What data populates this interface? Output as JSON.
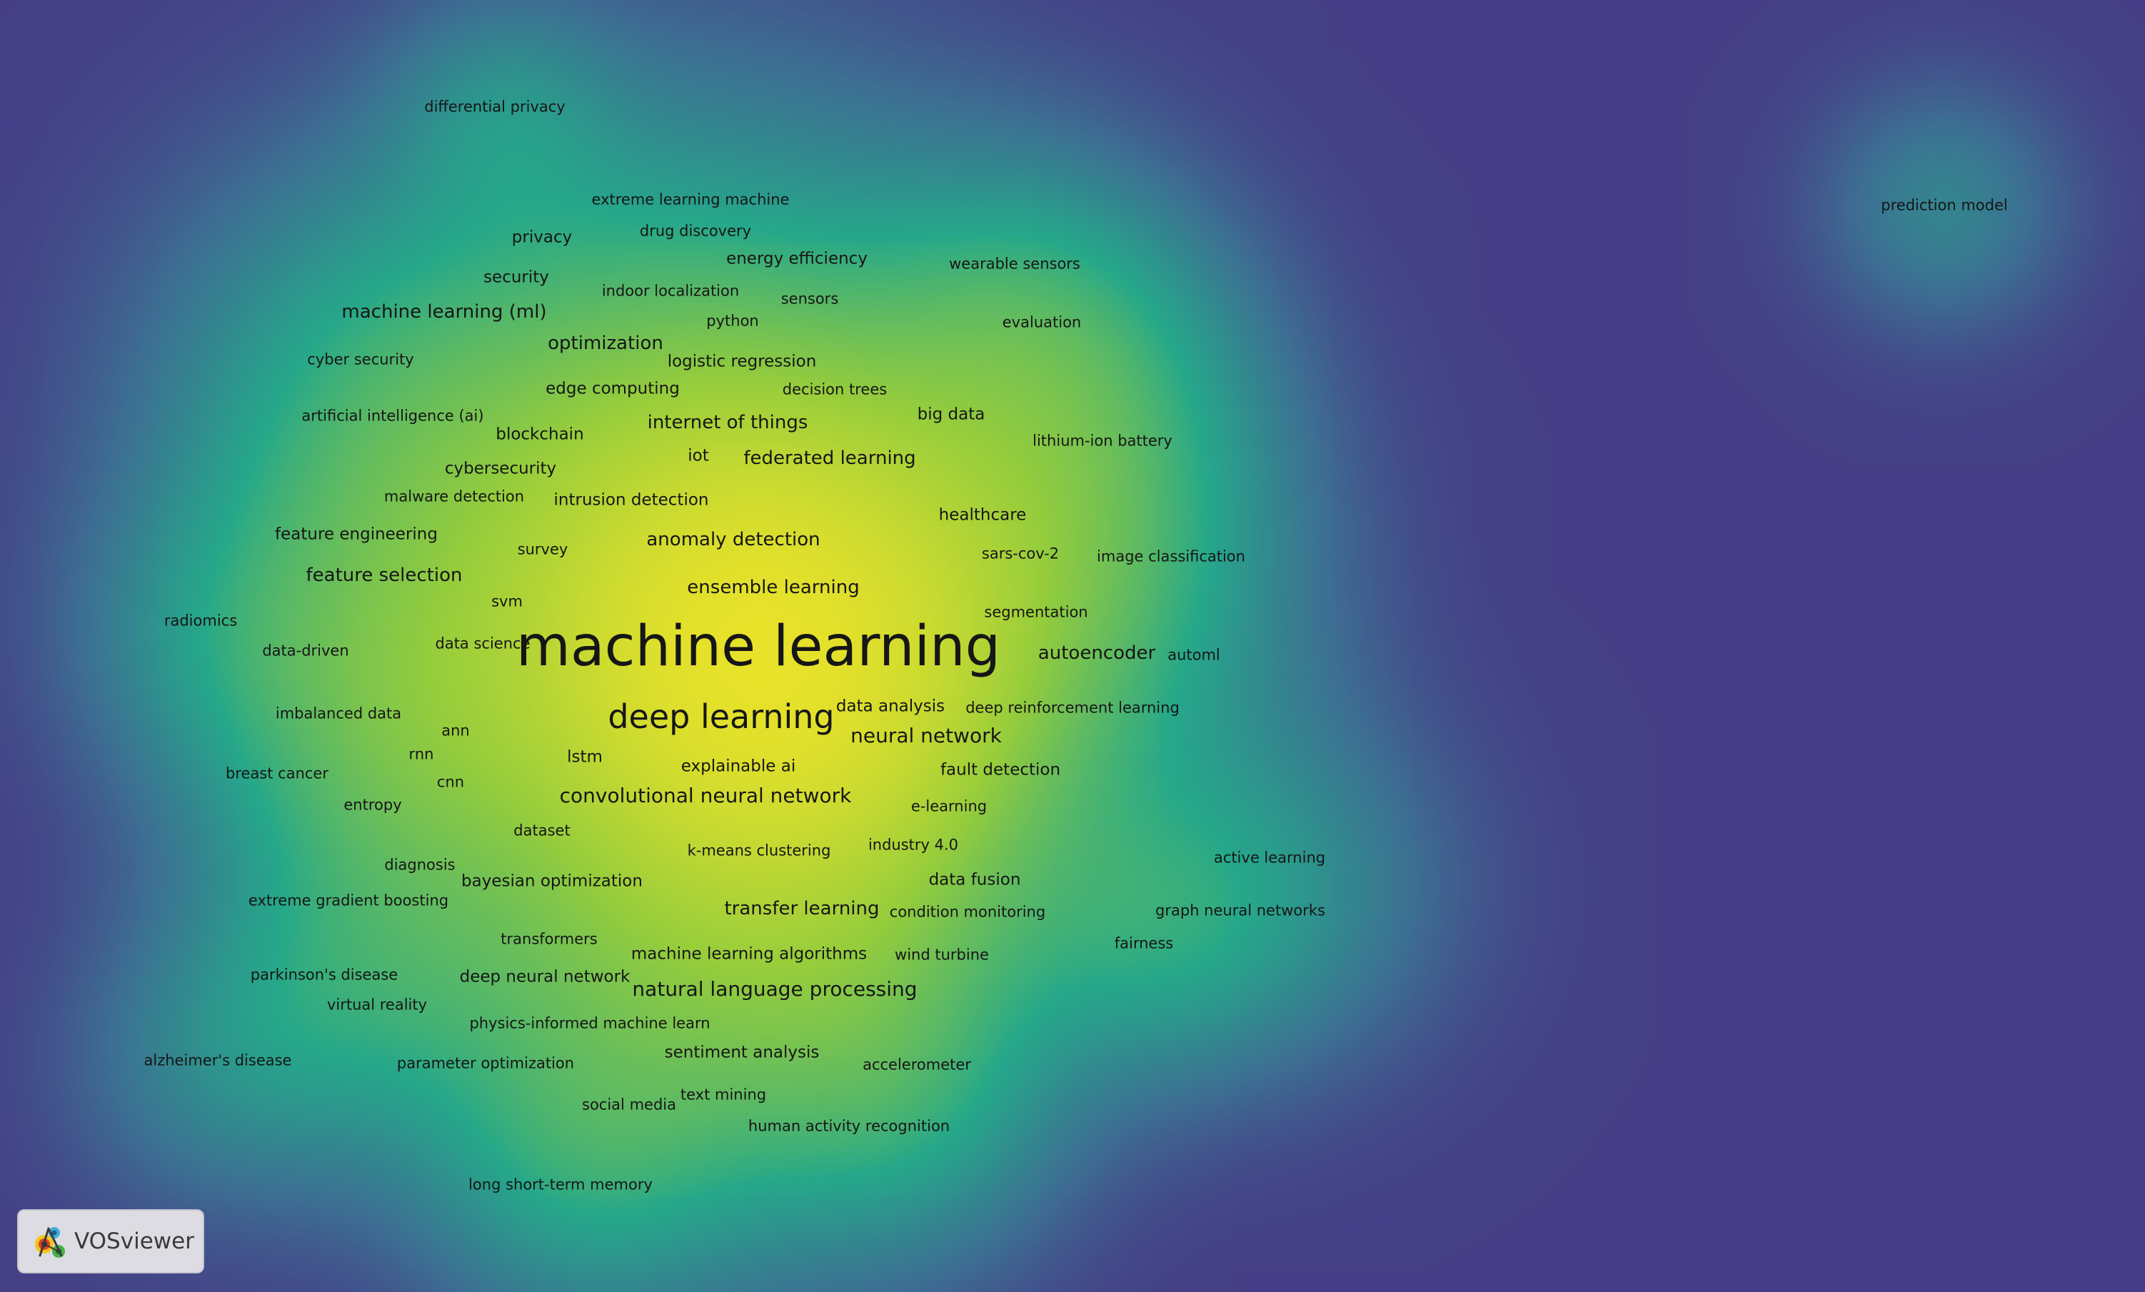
{
  "app": {
    "brand_label": "VOSviewer"
  },
  "colors": {
    "background": "#453e86",
    "density_low": "#3d6f93",
    "density_mid": "#26a88a",
    "density_high": "#fde725",
    "label": "#161616"
  },
  "terms": [
    {
      "label": "machine learning",
      "weight": 100
    },
    {
      "label": "deep learning",
      "weight": 40
    },
    {
      "label": "convolutional neural network",
      "weight": 22
    },
    {
      "label": "neural network",
      "weight": 20
    },
    {
      "label": "natural language processing",
      "weight": 20
    },
    {
      "label": "federated learning",
      "weight": 18
    },
    {
      "label": "internet of things",
      "weight": 18
    },
    {
      "label": "anomaly detection",
      "weight": 17
    },
    {
      "label": "feature selection",
      "weight": 17
    },
    {
      "label": "ensemble learning",
      "weight": 16
    },
    {
      "label": "transfer learning",
      "weight": 16
    },
    {
      "label": "autoencoder",
      "weight": 15
    },
    {
      "label": "optimization",
      "weight": 15
    },
    {
      "label": "machine learning (ml)",
      "weight": 15
    },
    {
      "label": "bayesian optimization",
      "weight": 14
    },
    {
      "label": "iot",
      "weight": 14
    },
    {
      "label": "fault detection",
      "weight": 13
    },
    {
      "label": "data fusion",
      "weight": 12
    },
    {
      "label": "intrusion detection",
      "weight": 13
    },
    {
      "label": "healthcare",
      "weight": 12
    },
    {
      "label": "big data",
      "weight": 12
    },
    {
      "label": "edge computing",
      "weight": 12
    },
    {
      "label": "logistic regression",
      "weight": 12
    },
    {
      "label": "energy efficiency",
      "weight": 12
    },
    {
      "label": "deep neural network",
      "weight": 12
    },
    {
      "label": "sentiment analysis",
      "weight": 12
    },
    {
      "label": "explainable ai",
      "weight": 12
    },
    {
      "label": "data analysis",
      "weight": 12
    },
    {
      "label": "lstm",
      "weight": 12
    },
    {
      "label": "privacy",
      "weight": 12
    },
    {
      "label": "machine learning algorithms",
      "weight": 12
    },
    {
      "label": "feature engineering",
      "weight": 12
    },
    {
      "label": "blockchain",
      "weight": 12
    },
    {
      "label": "cybersecurity",
      "weight": 12
    },
    {
      "label": "security",
      "weight": 12
    },
    {
      "label": "artificial intelligence (ai)",
      "weight": 11
    },
    {
      "label": "svm",
      "weight": 11
    },
    {
      "label": "k-means clustering",
      "weight": 11
    },
    {
      "label": "industry 4.0",
      "weight": 11
    },
    {
      "label": "e-learning",
      "weight": 11
    },
    {
      "label": "condition monitoring",
      "weight": 11
    },
    {
      "label": "wind turbine",
      "weight": 11
    },
    {
      "label": "deep reinforcement learning",
      "weight": 11
    },
    {
      "label": "segmentation",
      "weight": 11
    },
    {
      "label": "sars-cov-2",
      "weight": 11
    },
    {
      "label": "image classification",
      "weight": 11
    },
    {
      "label": "lithium-ion battery",
      "weight": 11
    },
    {
      "label": "decision trees",
      "weight": 11
    },
    {
      "label": "python",
      "weight": 11
    },
    {
      "label": "sensors",
      "weight": 11
    },
    {
      "label": "indoor localization",
      "weight": 11
    },
    {
      "label": "drug discovery",
      "weight": 11
    },
    {
      "label": "extreme learning machine",
      "weight": 11
    },
    {
      "label": "wearable sensors",
      "weight": 11
    },
    {
      "label": "evaluation",
      "weight": 11
    },
    {
      "label": "cyber security",
      "weight": 11
    },
    {
      "label": "malware detection",
      "weight": 11
    },
    {
      "label": "survey",
      "weight": 11
    },
    {
      "label": "data science",
      "weight": 11
    },
    {
      "label": "data-driven",
      "weight": 11
    },
    {
      "label": "radiomics",
      "weight": 11
    },
    {
      "label": "imbalanced data",
      "weight": 11
    },
    {
      "label": "ann",
      "weight": 11
    },
    {
      "label": "rnn",
      "weight": 11
    },
    {
      "label": "cnn",
      "weight": 11
    },
    {
      "label": "breast cancer",
      "weight": 11
    },
    {
      "label": "entropy",
      "weight": 11
    },
    {
      "label": "dataset",
      "weight": 11
    },
    {
      "label": "diagnosis",
      "weight": 11
    },
    {
      "label": "extreme gradient boosting",
      "weight": 11
    },
    {
      "label": "transformers",
      "weight": 11
    },
    {
      "label": "parkinson's disease",
      "weight": 11
    },
    {
      "label": "virtual reality",
      "weight": 11
    },
    {
      "label": "physics-informed machine learn",
      "weight": 11
    },
    {
      "label": "alzheimer's disease",
      "weight": 11
    },
    {
      "label": "parameter optimization",
      "weight": 11
    },
    {
      "label": "text mining",
      "weight": 11
    },
    {
      "label": "social media",
      "weight": 11
    },
    {
      "label": "human activity recognition",
      "weight": 11
    },
    {
      "label": "accelerometer",
      "weight": 11
    },
    {
      "label": "long short-term memory",
      "weight": 11
    },
    {
      "label": "active learning",
      "weight": 11
    },
    {
      "label": "graph neural networks",
      "weight": 11
    },
    {
      "label": "fairness",
      "weight": 11
    },
    {
      "label": "automl",
      "weight": 11
    },
    {
      "label": "differential privacy",
      "weight": 11
    },
    {
      "label": "prediction model",
      "weight": 11
    }
  ]
}
